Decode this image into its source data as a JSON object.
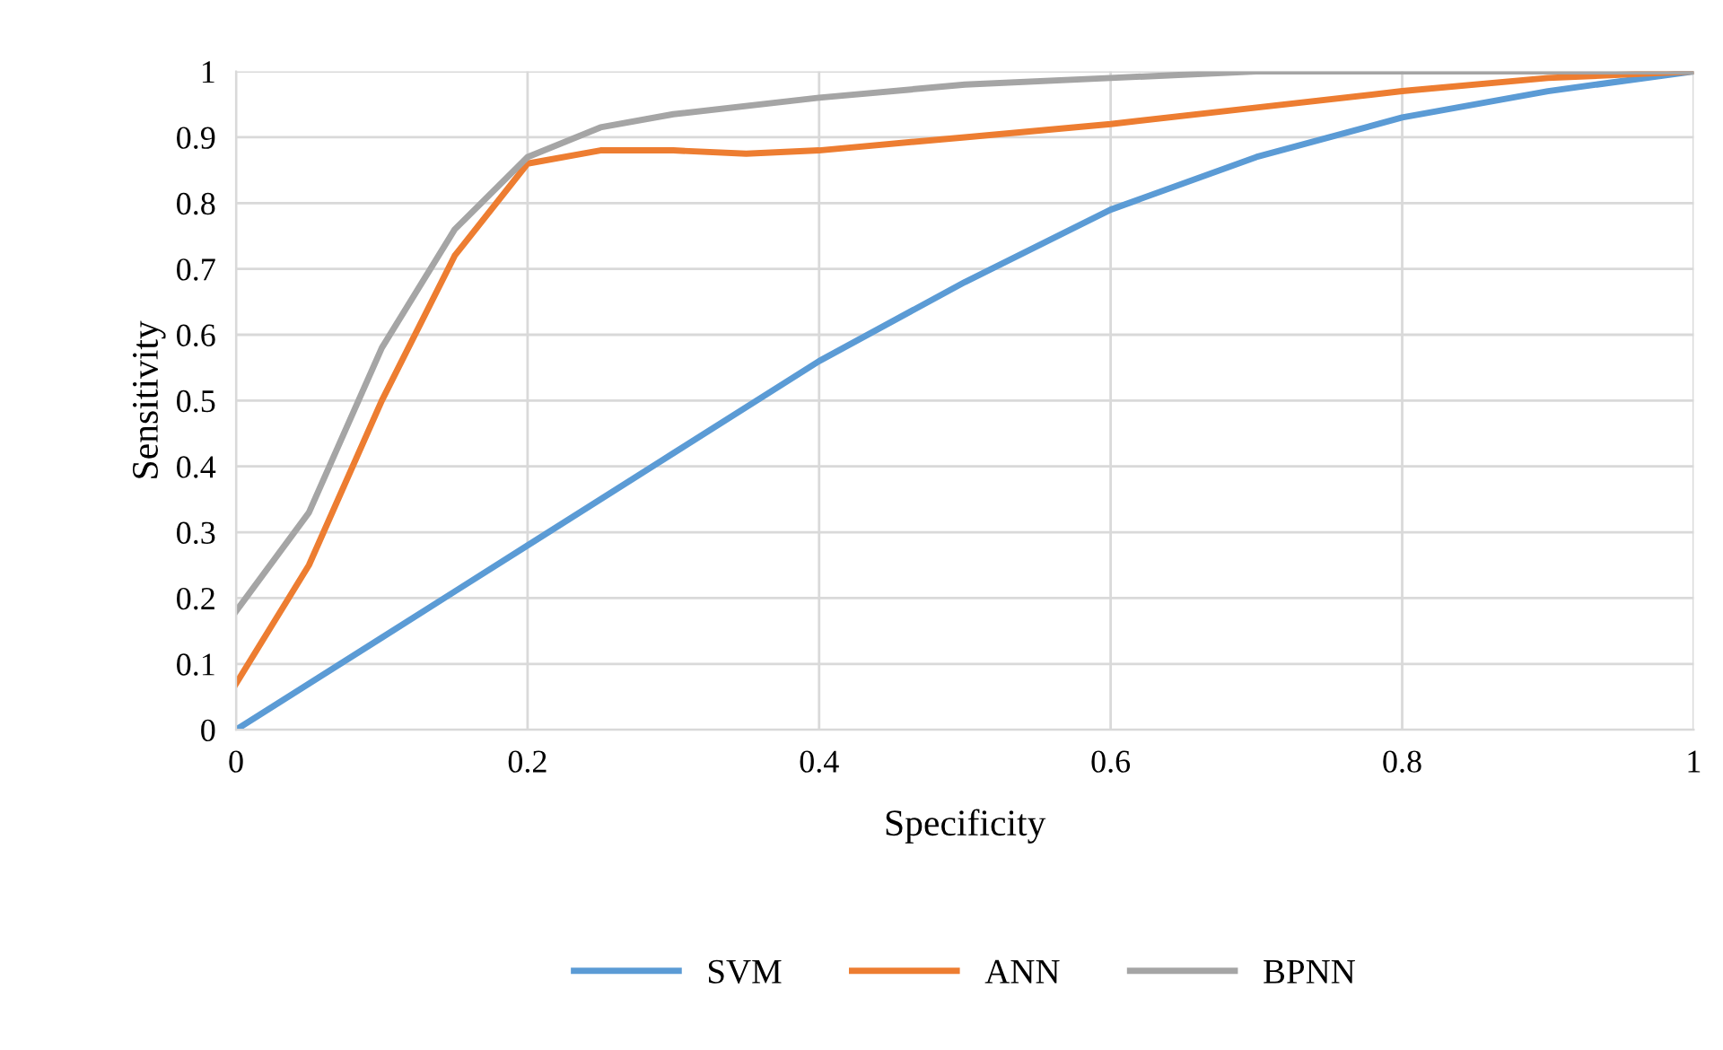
{
  "chart_data": {
    "type": "line",
    "xlabel": "Specificity",
    "ylabel": "Sensitivity",
    "xlim": [
      0,
      1
    ],
    "ylim": [
      0,
      1
    ],
    "xticks": [
      0,
      0.2,
      0.4,
      0.6,
      0.8,
      1
    ],
    "yticks": [
      0,
      0.1,
      0.2,
      0.3,
      0.4,
      0.5,
      0.6,
      0.7,
      0.8,
      0.9,
      1
    ],
    "grid": true,
    "legend": "bottom",
    "marker": "none",
    "line_style": "solid",
    "series": [
      {
        "name": "SVM",
        "color": "#5b9bd5",
        "x": [
          0,
          0.1,
          0.2,
          0.3,
          0.4,
          0.5,
          0.6,
          0.7,
          0.8,
          0.9,
          1
        ],
        "values": [
          0,
          0.14,
          0.28,
          0.42,
          0.56,
          0.68,
          0.79,
          0.87,
          0.93,
          0.97,
          1
        ]
      },
      {
        "name": "ANN",
        "color": "#ed7d31",
        "x": [
          0,
          0.05,
          0.1,
          0.15,
          0.2,
          0.25,
          0.3,
          0.35,
          0.4,
          0.5,
          0.6,
          0.7,
          0.8,
          0.9,
          1
        ],
        "values": [
          0.07,
          0.25,
          0.5,
          0.72,
          0.86,
          0.88,
          0.88,
          0.875,
          0.88,
          0.9,
          0.92,
          0.945,
          0.97,
          0.99,
          1
        ]
      },
      {
        "name": "BPNN",
        "color": "#a5a5a5",
        "x": [
          0,
          0.05,
          0.1,
          0.15,
          0.2,
          0.25,
          0.3,
          0.4,
          0.5,
          0.6,
          0.7,
          0.8,
          0.9,
          1
        ],
        "values": [
          0.18,
          0.33,
          0.58,
          0.76,
          0.87,
          0.915,
          0.935,
          0.96,
          0.98,
          0.99,
          1,
          1,
          1,
          1
        ]
      }
    ]
  }
}
